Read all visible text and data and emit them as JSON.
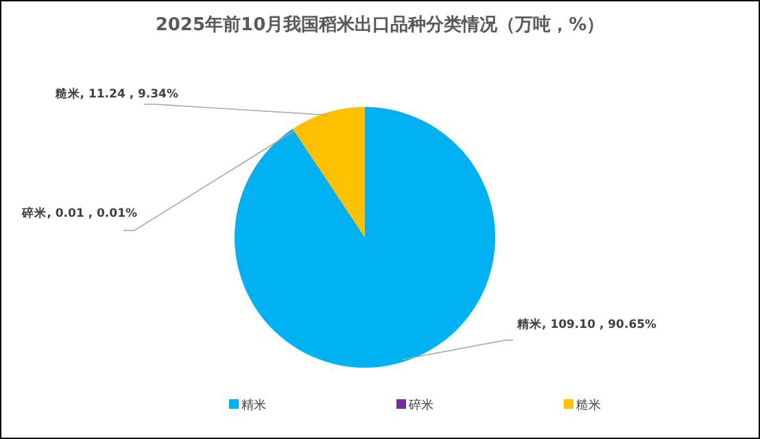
{
  "chart_data": {
    "type": "pie",
    "title": "2025年前10月我国稻米出口品种分类情况（万吨，%）",
    "categories": [
      "精米",
      "碎米",
      "糙米"
    ],
    "values": [
      109.1,
      0.01,
      11.24
    ],
    "colors": [
      "#00b0f0",
      "#7030a0",
      "#ffc000"
    ],
    "value_labels": [
      "精米, 109.10 , 90.65%",
      "碎米, 0.01 , 0.01%",
      "糙米, 11.24 , 9.34%"
    ],
    "legend": "bottom"
  }
}
